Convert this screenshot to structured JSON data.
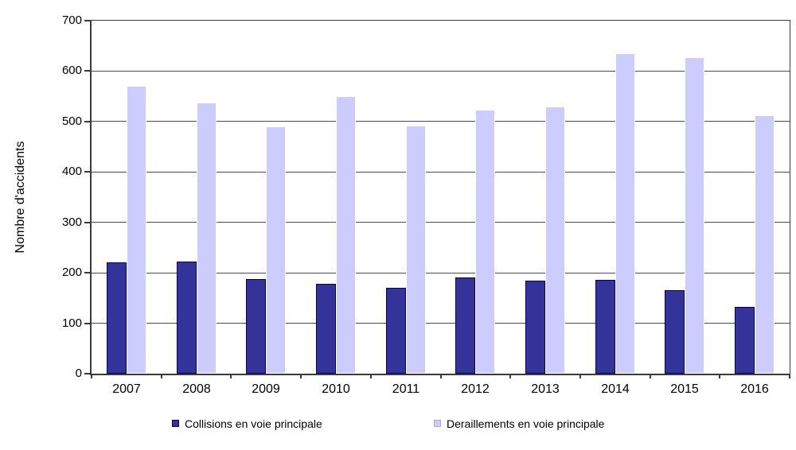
{
  "chart_data": {
    "type": "bar",
    "title": "",
    "xlabel": "",
    "ylabel": "Nombre d'accidents",
    "categories": [
      "2007",
      "2008",
      "2009",
      "2010",
      "2011",
      "2012",
      "2013",
      "2014",
      "2015",
      "2016"
    ],
    "series": [
      {
        "name": "Collisions en voie principale",
        "color": "#333399",
        "border_color": "#000066",
        "values": [
          220,
          222,
          188,
          178,
          170,
          191,
          184,
          186,
          165,
          132
        ]
      },
      {
        "name": "Deraillements en voie principale",
        "color": "#ccccff",
        "border_color": "#ffffff",
        "values": [
          570,
          537,
          490,
          550,
          492,
          524,
          530,
          635,
          628,
          513
        ]
      }
    ],
    "ylim": [
      0,
      700
    ],
    "yticks": [
      0,
      100,
      200,
      300,
      400,
      500,
      600,
      700
    ],
    "grid": true,
    "legend_position": "bottom",
    "background_color": "#ffffff",
    "axis_color": "#3a3a3a",
    "grid_color": "#4a4a4a"
  }
}
